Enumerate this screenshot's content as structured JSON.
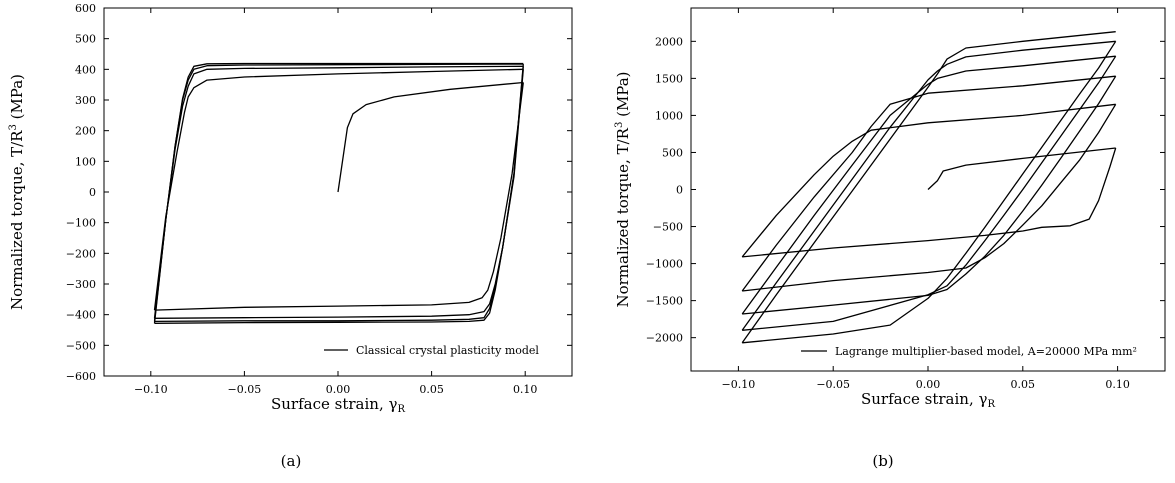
{
  "chart_data": [
    {
      "type": "line",
      "panel_label": "(a)",
      "xlabel": "Surface strain, γ",
      "xlabel_sub": "R",
      "ylabel": "Normalized torque, T/R",
      "ylabel_sup": "3",
      "ylabel_unit": " (MPa)",
      "xlim": [
        -0.125,
        0.125
      ],
      "ylim": [
        -600,
        600
      ],
      "xticks": [
        -0.1,
        -0.05,
        0,
        0.05,
        0.1
      ],
      "xtick_labels": [
        "−0.10",
        "−0.05",
        "0.00",
        "0.05",
        "0.10"
      ],
      "yticks": [
        -600,
        -500,
        -400,
        -300,
        -200,
        -100,
        0,
        100,
        200,
        300,
        400,
        500,
        600
      ],
      "ytick_labels": [
        "−600",
        "−500",
        "−400",
        "−300",
        "−200",
        "−100",
        "0",
        "100",
        "200",
        "300",
        "400",
        "500",
        "600"
      ],
      "legend": {
        "text": "Classical crystal plasticity model",
        "position": "lower-right"
      },
      "series": [
        {
          "x": [
            0,
            0.005,
            0.008,
            0.015,
            0.03,
            0.06,
            0.099
          ],
          "y": [
            0,
            210,
            255,
            285,
            310,
            335,
            357
          ]
        },
        {
          "x": [
            0.099,
            0.093,
            0.087,
            0.083,
            0.08,
            0.077,
            0.07,
            0.05,
            0,
            -0.05,
            -0.098
          ],
          "y": [
            357,
            60,
            -150,
            -260,
            -320,
            -345,
            -360,
            -368,
            -372,
            -376,
            -385
          ]
        },
        {
          "x": [
            -0.098,
            -0.092,
            -0.086,
            -0.082,
            -0.08,
            -0.077,
            -0.07,
            -0.05,
            0,
            0.05,
            0.099
          ],
          "y": [
            -385,
            -80,
            130,
            260,
            310,
            340,
            365,
            375,
            385,
            393,
            400
          ]
        },
        {
          "x": [
            0.099,
            0.094,
            0.088,
            0.084,
            0.081,
            0.078,
            0.07,
            0.05,
            0,
            -0.05,
            -0.098
          ],
          "y": [
            400,
            50,
            -180,
            -300,
            -365,
            -390,
            -400,
            -405,
            -408,
            -410,
            -412
          ]
        },
        {
          "x": [
            -0.098,
            -0.092,
            -0.087,
            -0.083,
            -0.08,
            -0.077,
            -0.07,
            -0.05,
            0,
            0.05,
            0.099
          ],
          "y": [
            -412,
            -90,
            140,
            280,
            345,
            385,
            400,
            403,
            405,
            408,
            410
          ]
        },
        {
          "x": [
            0.099,
            0.094,
            0.088,
            0.084,
            0.081,
            0.078,
            0.07,
            0.05,
            0,
            -0.05,
            -0.098
          ],
          "y": [
            410,
            60,
            -180,
            -310,
            -380,
            -410,
            -415,
            -418,
            -420,
            -420,
            -422
          ]
        },
        {
          "x": [
            -0.098,
            -0.092,
            -0.087,
            -0.083,
            -0.08,
            -0.077,
            -0.07,
            -0.05,
            0,
            0.05,
            0.099
          ],
          "y": [
            -422,
            -90,
            150,
            300,
            365,
            400,
            412,
            414,
            415,
            416,
            417
          ]
        },
        {
          "x": [
            0.099,
            0.094,
            0.088,
            0.084,
            0.081,
            0.078,
            0.07,
            0.05,
            0,
            -0.05,
            -0.098
          ],
          "y": [
            417,
            60,
            -180,
            -320,
            -395,
            -418,
            -422,
            -424,
            -425,
            -426,
            -428
          ]
        },
        {
          "x": [
            -0.098,
            -0.092,
            -0.087,
            -0.083,
            -0.08,
            -0.077,
            -0.07,
            -0.05,
            0,
            0.05,
            0.099
          ],
          "y": [
            -428,
            -90,
            150,
            305,
            375,
            410,
            418,
            419,
            419,
            419,
            419
          ]
        }
      ]
    },
    {
      "type": "line",
      "panel_label": "(b)",
      "xlabel": "Surface strain, γ",
      "xlabel_sub": "R",
      "ylabel": "Normalized torque, T/R",
      "ylabel_sup": "3",
      "ylabel_unit": " (MPa)",
      "xlim": [
        -0.125,
        0.125
      ],
      "ylim": [
        -2450,
        2450
      ],
      "xticks": [
        -0.1,
        -0.05,
        0,
        0.05,
        0.1
      ],
      "xtick_labels": [
        "−0.10",
        "−0.05",
        "0.00",
        "0.05",
        "0.10"
      ],
      "yticks": [
        -2000,
        -1500,
        -1000,
        -500,
        0,
        500,
        1000,
        1500,
        2000
      ],
      "ytick_labels": [
        "−2000",
        "−1500",
        "−1000",
        "−500",
        "0",
        "500",
        "1000",
        "1500",
        "2000"
      ],
      "legend": {
        "text": "Lagrange multiplier-based model, A=20000 MPa mm²",
        "position": "lower-right"
      },
      "series": [
        {
          "x": [
            0,
            0.005,
            0.008,
            0.02,
            0.05,
            0.099
          ],
          "y": [
            0,
            120,
            250,
            330,
            420,
            560
          ]
        },
        {
          "x": [
            0.099,
            0.096,
            0.09,
            0.085,
            0.075,
            0.06,
            0.05,
            0.03,
            0.0,
            -0.05,
            -0.098
          ],
          "y": [
            560,
            310,
            -150,
            -400,
            -490,
            -510,
            -560,
            -620,
            -690,
            -790,
            -910
          ]
        },
        {
          "x": [
            -0.098,
            -0.08,
            -0.06,
            -0.05,
            -0.04,
            -0.03,
            0,
            0.05,
            0.099
          ],
          "y": [
            -910,
            -350,
            200,
            450,
            650,
            800,
            900,
            1000,
            1150
          ]
        },
        {
          "x": [
            0.099,
            0.09,
            0.08,
            0.07,
            0.06,
            0.05,
            0.04,
            0.03,
            0.02,
            0.0,
            -0.05,
            -0.098
          ],
          "y": [
            1150,
            770,
            400,
            90,
            -220,
            -480,
            -730,
            -920,
            -1060,
            -1120,
            -1230,
            -1370
          ]
        },
        {
          "x": [
            -0.098,
            -0.08,
            -0.06,
            -0.04,
            -0.03,
            -0.02,
            0,
            0.05,
            0.099
          ],
          "y": [
            -1370,
            -750,
            -100,
            500,
            850,
            1150,
            1300,
            1400,
            1530
          ]
        },
        {
          "x": [
            0.099,
            0.09,
            0.08,
            0.07,
            0.06,
            0.05,
            0.04,
            0.03,
            0.02,
            0.01,
            0.0,
            -0.05,
            -0.098
          ],
          "y": [
            1530,
            1160,
            790,
            420,
            60,
            -290,
            -620,
            -900,
            -1140,
            -1350,
            -1430,
            -1560,
            -1680
          ]
        },
        {
          "x": [
            -0.098,
            -0.08,
            -0.06,
            -0.04,
            -0.02,
            0,
            0.005,
            0.02,
            0.05,
            0.099
          ],
          "y": [
            -1680,
            -1050,
            -350,
            330,
            1000,
            1420,
            1500,
            1600,
            1670,
            1800
          ]
        },
        {
          "x": [
            0.099,
            0.09,
            0.08,
            0.07,
            0.06,
            0.05,
            0.04,
            0.03,
            0.02,
            0.01,
            0.0,
            -0.05,
            -0.098
          ],
          "y": [
            1800,
            1440,
            1080,
            720,
            360,
            0,
            -350,
            -690,
            -1020,
            -1300,
            -1420,
            -1780,
            -1900
          ]
        },
        {
          "x": [
            -0.098,
            -0.08,
            -0.06,
            -0.04,
            -0.02,
            0,
            0.005,
            0.01,
            0.02,
            0.05,
            0.099
          ],
          "y": [
            -1900,
            -1260,
            -560,
            140,
            840,
            1480,
            1600,
            1690,
            1790,
            1880,
            2000
          ]
        },
        {
          "x": [
            0.099,
            0.09,
            0.08,
            0.07,
            0.06,
            0.05,
            0.04,
            0.03,
            0.02,
            0.01,
            0.0,
            -0.02,
            -0.05,
            -0.098
          ],
          "y": [
            2000,
            1640,
            1290,
            930,
            570,
            210,
            -150,
            -510,
            -860,
            -1200,
            -1470,
            -1830,
            -1950,
            -2070
          ]
        },
        {
          "x": [
            -0.098,
            -0.08,
            -0.06,
            -0.04,
            -0.02,
            0,
            0.005,
            0.01,
            0.02,
            0.05,
            0.099
          ],
          "y": [
            -2070,
            -1420,
            -720,
            -20,
            680,
            1380,
            1560,
            1760,
            1910,
            2000,
            2130
          ]
        }
      ]
    }
  ]
}
